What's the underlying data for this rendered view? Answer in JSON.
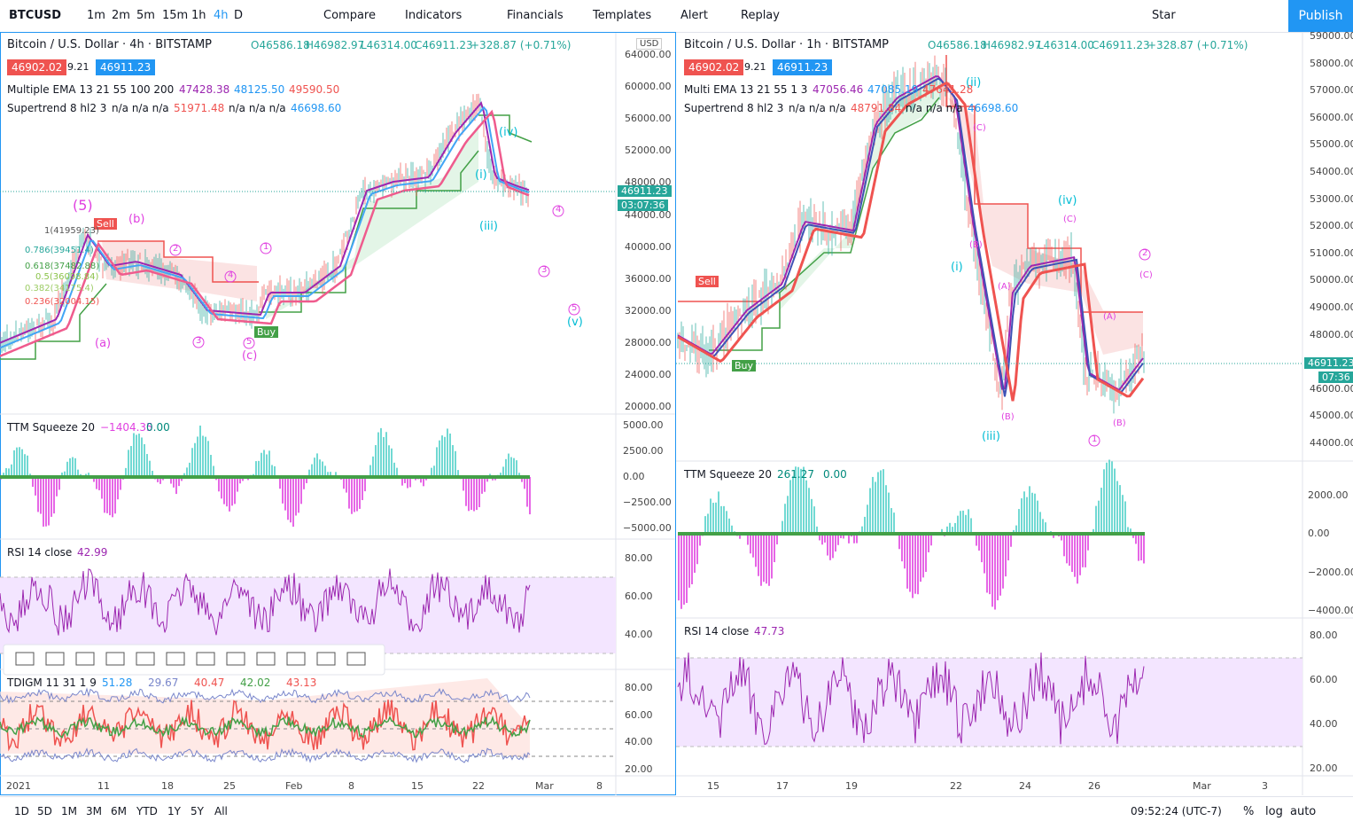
{
  "toolbar": {
    "symbol": "BTCUSD",
    "intervals": [
      "1m",
      "2m",
      "5m",
      "15m",
      "1h",
      "4h",
      "D"
    ],
    "buttons": [
      "Compare",
      "Indicators",
      "Financials",
      "Templates",
      "Alert",
      "Replay"
    ],
    "layout": "Star",
    "publish": "Publish"
  },
  "left": {
    "title": "Bitcoin / U.S. Dollar · 4h · BITSTAMP",
    "ohlc": [
      "O46586.18",
      "H46982.97",
      "L46314.00",
      "C46911.23",
      "+328.87 (+0.71%)"
    ],
    "bid": "46902.02",
    "spread": "9.21",
    "ask": "46911.23",
    "ema": {
      "name": "Multiple EMA 13 21 55 100 200",
      "values": [
        "47428.38",
        "48125.50",
        "49590.50"
      ]
    },
    "supertrend": {
      "name": "Supertrend 8 hl2 3",
      "values": [
        "n/a n/a n/a",
        "51971.48",
        "n/a n/a n/a",
        "46698.60"
      ]
    },
    "currency": "USD",
    "price_axis": [
      "64000.00",
      "60000.00",
      "56000.00",
      "52000.00",
      "48000.00",
      "44000.00",
      "40000.00",
      "36000.00",
      "32000.00",
      "28000.00",
      "24000.00",
      "20000.00"
    ],
    "last_price": "46911.23",
    "countdown": "03:07:36",
    "ttm": {
      "name": "TTM Squeeze 20",
      "values": [
        "−1404.35",
        "0.00"
      ],
      "axis": [
        "5000.00",
        "2500.00",
        "0.00",
        "−2500.00",
        "−5000.00"
      ]
    },
    "rsi": {
      "name": "RSI 14 close",
      "value": "42.99",
      "axis": [
        "80.00",
        "60.00",
        "40.00"
      ]
    },
    "tdigm": {
      "name": "TDIGM 11 31 1 9",
      "values": [
        "51.28",
        "29.67",
        "40.47",
        "42.02",
        "43.13"
      ],
      "axis": [
        "80.00",
        "60.00",
        "40.00",
        "20.00"
      ]
    },
    "time_axis": [
      "2021",
      "11",
      "18",
      "25",
      "Feb",
      "8",
      "15",
      "22",
      "Mar",
      "8"
    ],
    "annotations": [
      "(5)",
      "Sell",
      "(b)",
      "(a)",
      "Buy",
      "(c)",
      "(iv)",
      "(iii)",
      "(v)",
      "(i)",
      "1(41959.23)",
      "0.786(39451.4)",
      "0.618(37482.88)",
      "0.5(36098.84)",
      "0.382(34175.4)",
      "0.236(32004.15)"
    ],
    "circled": [
      "1",
      "4",
      "3",
      "5",
      "2",
      "4",
      "3",
      "5"
    ]
  },
  "right": {
    "title": "Bitcoin / U.S. Dollar · 1h · BITSTAMP",
    "ohlc": [
      "O46586.18",
      "H46982.97",
      "L46314.00",
      "C46911.23",
      "+328.87 (+0.71%)"
    ],
    "bid": "46902.02",
    "spread": "9.21",
    "ask": "46911.23",
    "ema": {
      "name": "Multi EMA 13 21 55 1 3",
      "values": [
        "47056.46",
        "47085.19",
        "47641.28"
      ]
    },
    "supertrend": {
      "name": "Supertrend 8 hl2 3",
      "values": [
        "n/a n/a n/a",
        "48791.84",
        "n/a n/a n/a",
        "46698.60"
      ]
    },
    "price_axis": [
      "59000.00",
      "58000.00",
      "57000.00",
      "56000.00",
      "55000.00",
      "54000.00",
      "53000.00",
      "52000.00",
      "51000.00",
      "50000.00",
      "49000.00",
      "48000.00",
      "47000.00",
      "46000.00",
      "45000.00",
      "44000.00"
    ],
    "last_price": "46911.23",
    "countdown": "07:36",
    "ttm": {
      "name": "TTM Squeeze 20",
      "values": [
        "261.27",
        "0.00"
      ],
      "axis": [
        "2000.00",
        "0.00",
        "−2000.00",
        "−4000.00"
      ]
    },
    "rsi": {
      "name": "RSI 14 close",
      "value": "47.73",
      "axis": [
        "80.00",
        "60.00",
        "40.00",
        "20.00"
      ]
    },
    "time_axis": [
      "15",
      "17",
      "19",
      "22",
      "24",
      "26",
      "Mar",
      "3"
    ],
    "annotations": [
      "Sell",
      "Buy",
      "(ii)",
      "(i)",
      "(iii)",
      "(iv)",
      "(C)",
      "(B)",
      "(A)",
      "(B)",
      "(C)",
      "(A)",
      "(B)",
      "(C)"
    ],
    "circled": [
      "2",
      "1"
    ]
  },
  "bottom": {
    "ranges": [
      "1D",
      "5D",
      "1M",
      "3M",
      "6M",
      "YTD",
      "1Y",
      "5Y",
      "All"
    ],
    "clock": "09:52:24 (UTC-7)",
    "options": [
      "%",
      "log",
      "auto"
    ]
  }
}
